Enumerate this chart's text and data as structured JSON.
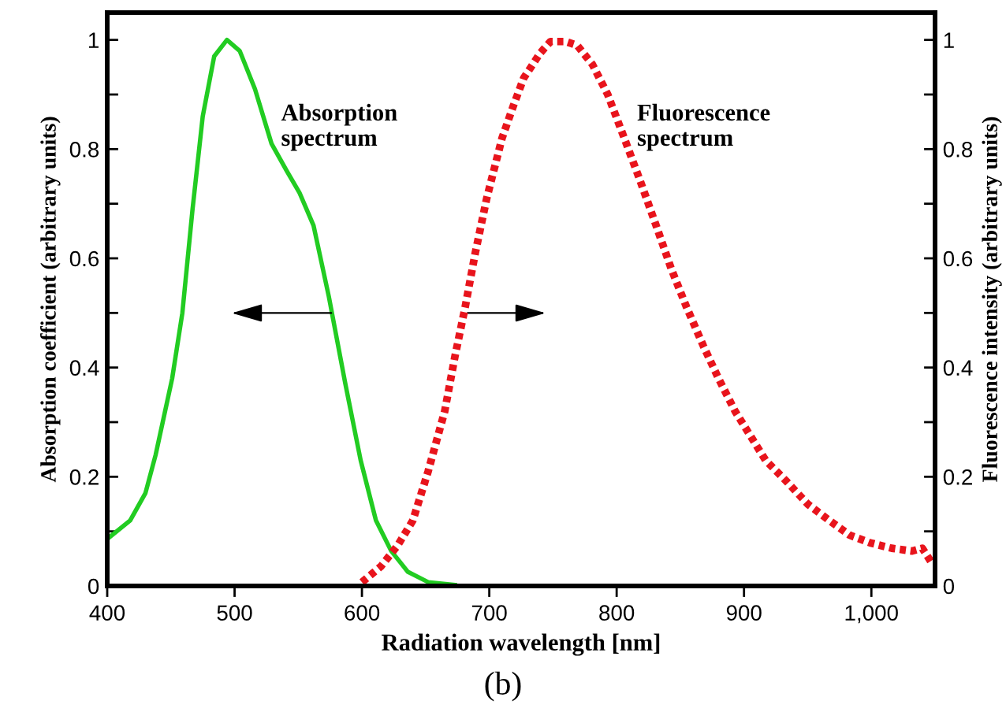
{
  "chart_data": {
    "type": "line",
    "xlabel": "Radiation wavelength [nm]",
    "ylabel": "Absorption coefficient (arbitrary units)",
    "y2label": "Fluorescence intensity (arbitrary units)",
    "annotations": [
      "Absorption\nspectrum",
      "Fluorescence\nspectrum",
      "(b)"
    ],
    "xlim": [
      400,
      1050
    ],
    "xticks": [
      400,
      500,
      600,
      700,
      800,
      900,
      {
        "value": 1000,
        "label": "1,000"
      }
    ],
    "ylim": [
      0,
      1.05
    ],
    "yticks": [
      0,
      {
        "value": 0.1,
        "label": null
      },
      0.2,
      {
        "value": 0.3,
        "label": null
      },
      0.4,
      {
        "value": 0.5,
        "label": null
      },
      0.6,
      {
        "value": 0.7,
        "label": null
      },
      0.8,
      {
        "value": 0.9,
        "label": null
      },
      1
    ],
    "y2lim": [
      0,
      1.05
    ],
    "y2ticks": [
      0,
      {
        "value": 0.1,
        "label": null
      },
      0.2,
      {
        "value": 0.3,
        "label": null
      },
      0.4,
      {
        "value": 0.5,
        "label": null
      },
      0.6,
      {
        "value": 0.7,
        "label": null
      },
      0.8,
      {
        "value": 0.9,
        "label": null
      },
      1
    ],
    "grid": false,
    "series": [
      {
        "color": "#22cc22",
        "line_style": "solid",
        "x": [
          400,
          418,
          430,
          438,
          451,
          459,
          467,
          475,
          484,
          494,
          504,
          516,
          529,
          541,
          551,
          562,
          574,
          587,
          599,
          611,
          623,
          636,
          652,
          673
        ],
        "values": [
          0.086,
          0.12,
          0.17,
          0.24,
          0.38,
          0.5,
          0.69,
          0.86,
          0.97,
          1.0,
          0.98,
          0.91,
          0.81,
          0.76,
          0.72,
          0.66,
          0.53,
          0.37,
          0.23,
          0.12,
          0.064,
          0.026,
          0.007,
          0.002
        ]
      },
      {
        "color": "#e8141c",
        "line_style": "dotted",
        "axis": "y2",
        "x": [
          600,
          615,
          628,
          640,
          652,
          665,
          673,
          681,
          689,
          698,
          710,
          719,
          727,
          740,
          748,
          760,
          769,
          781,
          793,
          806,
          818,
          831,
          843,
          855,
          868,
          880,
          893,
          905,
          917,
          934,
          950,
          967,
          983,
          999,
          1016,
          1032,
          1040,
          1048
        ],
        "values": [
          0.007,
          0.036,
          0.074,
          0.12,
          0.21,
          0.32,
          0.42,
          0.51,
          0.61,
          0.71,
          0.82,
          0.88,
          0.93,
          0.976,
          0.997,
          0.997,
          0.99,
          0.955,
          0.9,
          0.82,
          0.745,
          0.66,
          0.58,
          0.51,
          0.44,
          0.38,
          0.32,
          0.275,
          0.23,
          0.19,
          0.15,
          0.12,
          0.093,
          0.079,
          0.069,
          0.064,
          0.069,
          0.04
        ]
      }
    ]
  }
}
